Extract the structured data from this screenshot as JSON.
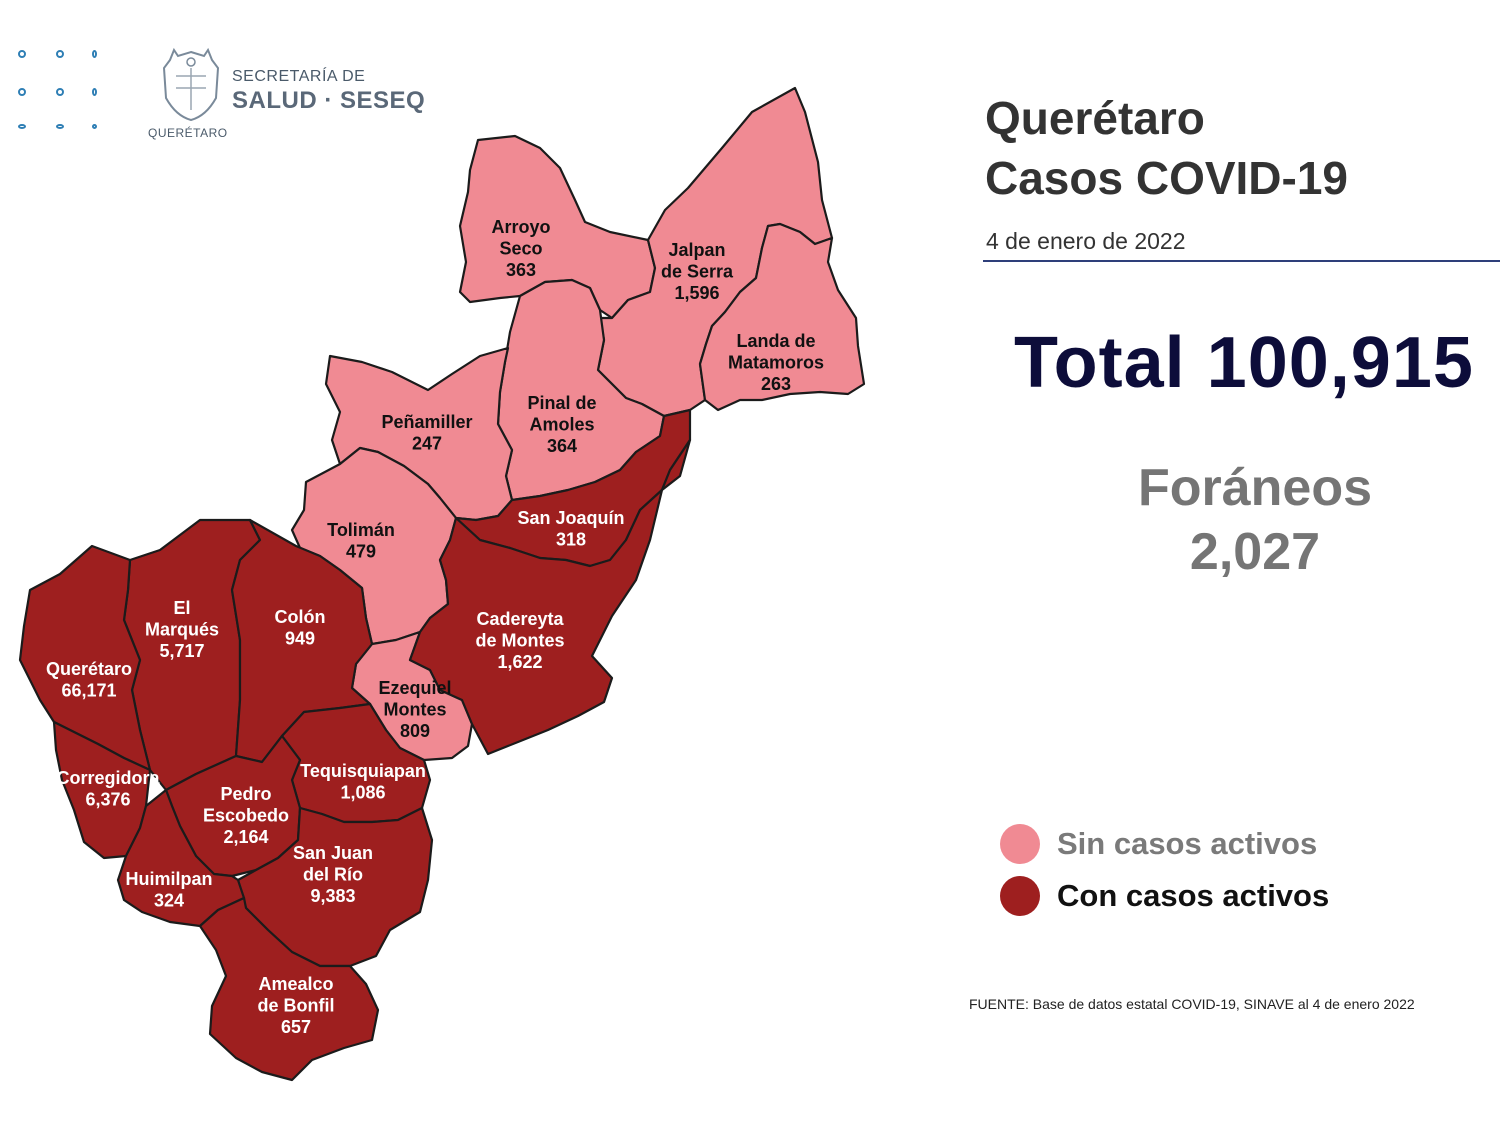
{
  "header": {
    "org_line1": "SECRETARÍA DE",
    "org_line2": "SALUD · SESEQ",
    "crest_caption": "QUERÉTARO"
  },
  "title_line1": "Querétaro",
  "title_line2": "Casos COVID-19",
  "date": "4 de enero de 2022",
  "total": "Total 100,915",
  "foraneos_label": "Foráneos",
  "foraneos_value": "2,027",
  "legend": {
    "inactive": "Sin casos activos",
    "active": "Con casos activos"
  },
  "colors": {
    "inactive": "#f08a93",
    "active": "#9e1f1f",
    "legend_inactive_text": "#7a7a7a",
    "legend_active_text": "#111111"
  },
  "source": "FUENTE: Base de datos estatal COVID-19, SINAVE al 4 de enero 2022",
  "municipalities": [
    {
      "id": "arroyo-seco",
      "lines": [
        "Arroyo",
        "Seco"
      ],
      "cases": "363",
      "status": "inactive"
    },
    {
      "id": "jalpan-de-serra",
      "lines": [
        "Jalpan",
        "de Serra"
      ],
      "cases": "1,596",
      "status": "inactive"
    },
    {
      "id": "landa-de-matamoros",
      "lines": [
        "Landa de",
        "Matamoros"
      ],
      "cases": "263",
      "status": "inactive"
    },
    {
      "id": "pinal-de-amoles",
      "lines": [
        "Pinal de",
        "Amoles"
      ],
      "cases": "364",
      "status": "inactive"
    },
    {
      "id": "penamiller",
      "lines": [
        "Peñamiller"
      ],
      "cases": "247",
      "status": "inactive"
    },
    {
      "id": "toliman",
      "lines": [
        "Tolimán"
      ],
      "cases": "479",
      "status": "inactive"
    },
    {
      "id": "ezequiel-montes",
      "lines": [
        "Ezequiel",
        "Montes"
      ],
      "cases": "809",
      "status": "inactive"
    },
    {
      "id": "san-joaquin",
      "lines": [
        "San Joaquín"
      ],
      "cases": "318",
      "status": "active"
    },
    {
      "id": "cadereyta-de-montes",
      "lines": [
        "Cadereyta",
        "de Montes"
      ],
      "cases": "1,622",
      "status": "active"
    },
    {
      "id": "el-marques",
      "lines": [
        "El",
        "Marqués"
      ],
      "cases": "5,717",
      "status": "active"
    },
    {
      "id": "colon",
      "lines": [
        "Colón"
      ],
      "cases": "949",
      "status": "active"
    },
    {
      "id": "queretaro",
      "lines": [
        "Querétaro"
      ],
      "cases": "66,171",
      "status": "active"
    },
    {
      "id": "corregidora",
      "lines": [
        "Corregidora"
      ],
      "cases": "6,376",
      "status": "active"
    },
    {
      "id": "tequisquiapan",
      "lines": [
        "Tequisquiapan"
      ],
      "cases": "1,086",
      "status": "active"
    },
    {
      "id": "pedro-escobedo",
      "lines": [
        "Pedro",
        "Escobedo"
      ],
      "cases": "2,164",
      "status": "active"
    },
    {
      "id": "san-juan-del-rio",
      "lines": [
        "San Juan",
        "del Río"
      ],
      "cases": "9,383",
      "status": "active"
    },
    {
      "id": "huimilpan",
      "lines": [
        "Huimilpan"
      ],
      "cases": "324",
      "status": "active"
    },
    {
      "id": "amealco-de-bonfil",
      "lines": [
        "Amealco",
        "de Bonfil"
      ],
      "cases": "657",
      "status": "active"
    }
  ]
}
